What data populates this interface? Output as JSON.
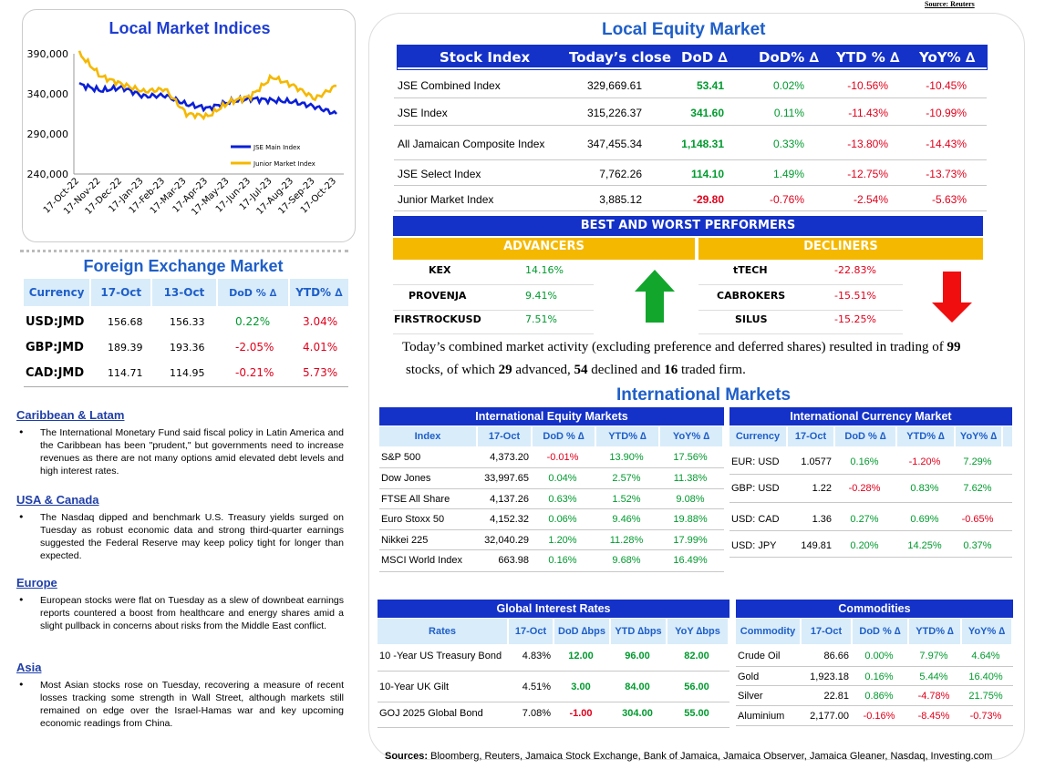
{
  "source_top": "Source: Reuters",
  "local_indices": {
    "title": "Local Market Indices",
    "legend": [
      "JSE Main Index",
      "Junior Market Index"
    ],
    "colors": {
      "main": "#0a1fd6",
      "junior": "#f5b800"
    }
  },
  "chart_data": {
    "type": "line",
    "title": "Local Market Indices",
    "ylim": [
      240000,
      390000
    ],
    "yticks": [
      "390,000",
      "340,000",
      "290,000",
      "240,000"
    ],
    "xticks": [
      "17-Oct-22",
      "17-Nov-22",
      "17-Dec-22",
      "17-Jan-23",
      "17-Feb-23",
      "17-Mar-23",
      "17-Apr-23",
      "17-May-23",
      "17-Jun-23",
      "17-Jul-23",
      "17-Aug-23",
      "17-Sep-23",
      "17-Oct-23"
    ],
    "series": [
      {
        "name": "JSE Main Index",
        "color": "#0a1fd6",
        "values": [
          352000,
          344000,
          348000,
          337000,
          338000,
          327000,
          322000,
          330000,
          334000,
          332000,
          330000,
          324000,
          315000
        ]
      },
      {
        "name": "Junior Market Index",
        "color": "#f5b800",
        "values": [
          390000,
          362000,
          352000,
          343000,
          346000,
          315000,
          312000,
          330000,
          337000,
          361000,
          350000,
          334000,
          350000
        ]
      }
    ]
  },
  "fx": {
    "title": "Foreign Exchange Market",
    "headers": [
      "Currency",
      "17-Oct",
      "13-Oct",
      "DoD % ∆",
      "YTD% ∆"
    ],
    "rows": [
      {
        "cur": "USD:JMD",
        "a": "156.68",
        "b": "156.33",
        "dod": "0.22%",
        "ytd": "3.04%"
      },
      {
        "cur": "GBP:JMD",
        "a": "189.39",
        "b": "193.36",
        "dod": "-2.05%",
        "ytd": "4.01%"
      },
      {
        "cur": "CAD:JMD",
        "a": "114.71",
        "b": "114.95",
        "dod": "-0.21%",
        "ytd": "5.73%"
      }
    ]
  },
  "news": [
    {
      "h": "Caribbean & Latam",
      "t": "The International Monetary Fund said fiscal policy in Latin America and the Caribbean has been \"prudent,\" but governments need to increase revenues as there are not many options amid elevated debt levels and high interest rates."
    },
    {
      "h": "USA & Canada",
      "t": "The Nasdaq dipped and benchmark U.S. Treasury yields surged on Tuesday as robust economic data and strong third-quarter earnings suggested the Federal Reserve may keep policy tight for longer than expected."
    },
    {
      "h": "Europe",
      "t": "European stocks were flat on Tuesday as a slew of downbeat earnings reports countered a boost from healthcare and energy shares amid a slight pullback in concerns about risks from the Middle East conflict."
    },
    {
      "h": "Asia",
      "t": "Most Asian stocks rose on Tuesday, recovering a measure of recent losses tracking some strength in Wall Street, although markets still remained on edge over the Israel-Hamas war and key upcoming economic readings from China."
    }
  ],
  "equity": {
    "title": "Local Equity Market",
    "headers": [
      "Stock Index",
      "Today’s close",
      "DoD ∆",
      "DoD% ∆",
      "YTD % ∆",
      "YoY% ∆"
    ],
    "rows": [
      {
        "n": "JSE Combined Index",
        "c": "329,669.61",
        "d": "53.41",
        "dp": "0.02%",
        "y": "-10.56%",
        "yy": "-10.45%"
      },
      {
        "n": "JSE Index",
        "c": "315,226.37",
        "d": "341.60",
        "dp": "0.11%",
        "y": "-11.43%",
        "yy": "-10.99%"
      },
      {
        "n": "All Jamaican Composite Index",
        "c": "347,455.34",
        "d": "1,148.31",
        "dp": "0.33%",
        "y": "-13.80%",
        "yy": "-14.43%"
      },
      {
        "n": "JSE Select Index",
        "c": "7,762.26",
        "d": "114.10",
        "dp": "1.49%",
        "y": "-12.75%",
        "yy": "-13.73%"
      },
      {
        "n": "Junior Market Index",
        "c": "3,885.12",
        "d": "-29.80",
        "dp": "-0.76%",
        "y": "-2.54%",
        "yy": "-5.63%"
      }
    ]
  },
  "performers": {
    "title": "BEST AND WORST PERFORMERS",
    "adv_label": "ADVANCERS",
    "dec_label": "DECLINERS",
    "advancers": [
      {
        "n": "KEX",
        "v": "14.16%"
      },
      {
        "n": "PROVENJA",
        "v": "9.41%"
      },
      {
        "n": "FIRSTROCKUSD",
        "v": "7.51%"
      }
    ],
    "decliners": [
      {
        "n": "tTECH",
        "v": "-22.83%"
      },
      {
        "n": "CABROKERS",
        "v": "-15.51%"
      },
      {
        "n": "SILUS",
        "v": "-15.25%"
      }
    ]
  },
  "summary": {
    "p1": "Today’s combined market activity (excluding preference and deferred shares) resulted in trading of ",
    "n1": "99",
    "p2": "stocks, of which ",
    "n2": "29",
    "p3": " advanced, ",
    "n3": "54",
    "p4": " declined and ",
    "n4": "16",
    "p5": " traded firm."
  },
  "intl": {
    "title": "International Markets",
    "eq_title": "International Equity Markets",
    "eq_headers": [
      "Index",
      "17-Oct",
      "DoD % ∆",
      "YTD% ∆",
      "YoY% ∆"
    ],
    "eq_rows": [
      {
        "n": "S&P 500",
        "v": "4,373.20",
        "d": "-0.01%",
        "y": "13.90%",
        "yy": "17.56%"
      },
      {
        "n": "Dow Jones",
        "v": "33,997.65",
        "d": "0.04%",
        "y": "2.57%",
        "yy": "11.38%"
      },
      {
        "n": "FTSE All Share",
        "v": "4,137.26",
        "d": "0.63%",
        "y": "1.52%",
        "yy": "9.08%"
      },
      {
        "n": "Euro Stoxx 50",
        "v": "4,152.32",
        "d": "0.06%",
        "y": "9.46%",
        "yy": "19.88%"
      },
      {
        "n": "Nikkei 225",
        "v": "32,040.29",
        "d": "1.20%",
        "y": "11.28%",
        "yy": "17.99%"
      },
      {
        "n": "MSCI World Index",
        "v": "663.98",
        "d": "0.16%",
        "y": "9.68%",
        "yy": "16.49%"
      }
    ],
    "cur_title": "International Currency Market",
    "cur_headers": [
      "Currency",
      "17-Oct",
      "DoD % ∆",
      "YTD% ∆",
      "YoY% ∆"
    ],
    "cur_rows": [
      {
        "n": "EUR: USD",
        "v": "1.0577",
        "d": "0.16%",
        "y": "-1.20%",
        "yy": "7.29%"
      },
      {
        "n": "GBP: USD",
        "v": "1.22",
        "d": "-0.28%",
        "y": "0.83%",
        "yy": "7.62%"
      },
      {
        "n": "USD: CAD",
        "v": "1.36",
        "d": "0.27%",
        "y": "0.69%",
        "yy": "-0.65%"
      },
      {
        "n": "USD: JPY",
        "v": "149.81",
        "d": "0.20%",
        "y": "14.25%",
        "yy": "0.37%"
      }
    ],
    "rates_title": "Global Interest Rates",
    "rates_headers": [
      "Rates",
      "17-Oct",
      "DoD ∆bps",
      "YTD ∆bps",
      "YoY ∆bps"
    ],
    "rates_rows": [
      {
        "n": "10 -Year US Treasury Bond",
        "v": "4.83%",
        "d": "12.00",
        "y": "96.00",
        "yy": "82.00"
      },
      {
        "n": "10-Year UK Gilt",
        "v": "4.51%",
        "d": "3.00",
        "y": "84.00",
        "yy": "56.00"
      },
      {
        "n": "GOJ 2025 Global Bond",
        "v": "7.08%",
        "d": "-1.00",
        "y": "304.00",
        "yy": "55.00"
      }
    ],
    "com_title": "Commodities",
    "com_headers": [
      "Commodity",
      "17-Oct",
      "DoD % ∆",
      "YTD% ∆",
      "YoY% ∆"
    ],
    "com_rows": [
      {
        "n": "Crude Oil",
        "v": "86.66",
        "d": "0.00%",
        "y": "7.97%",
        "yy": "4.64%"
      },
      {
        "n": "Gold",
        "v": "1,923.18",
        "d": "0.16%",
        "y": "5.44%",
        "yy": "16.40%"
      },
      {
        "n": "Silver",
        "v": "22.81",
        "d": "0.86%",
        "y": "-4.78%",
        "yy": "21.75%"
      },
      {
        "n": "Aluminium",
        "v": "2,177.00",
        "d": "-0.16%",
        "y": "-8.45%",
        "yy": "-0.73%"
      }
    ]
  },
  "footer": {
    "label": "Sources:",
    "text": " Bloomberg, Reuters, Jamaica Stock Exchange, Bank of Jamaica, Jamaica Observer, Jamaica Gleaner, Nasdaq, Investing.com"
  }
}
